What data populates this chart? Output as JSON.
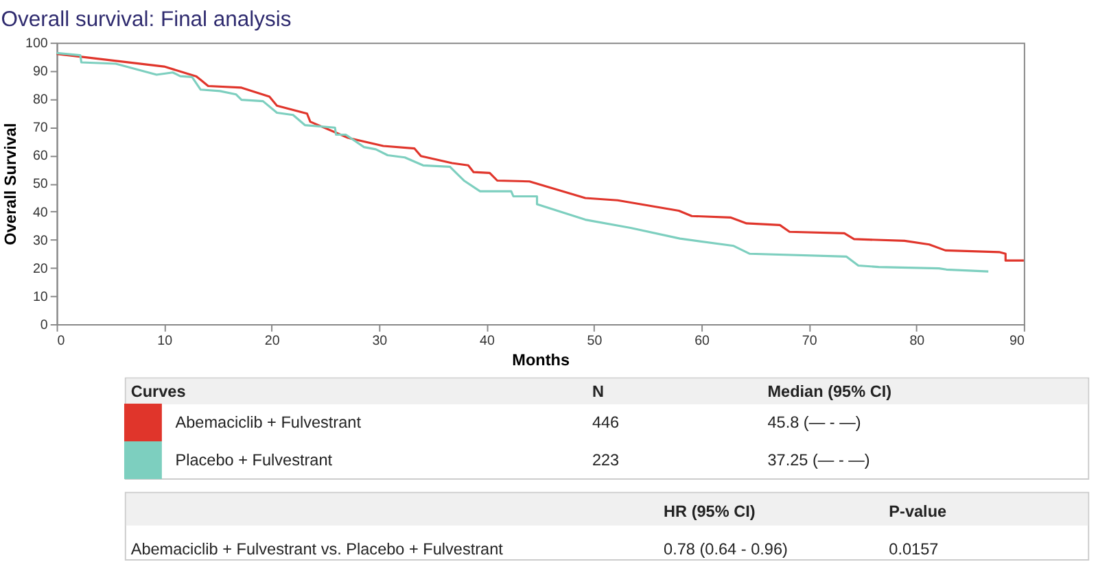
{
  "chart_data": {
    "type": "line",
    "title": "Overall survival: Final analysis",
    "xlabel": "Months",
    "ylabel": "Overall Survival",
    "xlim": [
      0,
      90
    ],
    "xticks": [
      0,
      10,
      20,
      30,
      40,
      50,
      60,
      70,
      80,
      90
    ],
    "ylim": [
      0,
      100
    ],
    "yticks": [
      0,
      10,
      20,
      30,
      40,
      50,
      60,
      70,
      80,
      90,
      100
    ],
    "grid": false,
    "legend": "bottom",
    "legend_title": "Curves",
    "line_style": "solid",
    "marker": "none",
    "series": [
      {
        "name": "Abemaciclib + Fulvestrant",
        "color": "#e0352b",
        "x": [
          0,
          10,
          13,
          13.4,
          14.1,
          17.2,
          19.8,
          20.5,
          23.3,
          23.6,
          27.1,
          30.4,
          33.3,
          33.9,
          36.8,
          38.3,
          38.8,
          40.3,
          41,
          44,
          49.2,
          52.2,
          57.9,
          59.1,
          62.7,
          64.2,
          67.3,
          68.2,
          73.3,
          74.2,
          78.9,
          81.2,
          82.7,
          87.7,
          88.3,
          88.3,
          90
        ],
        "values": [
          96,
          91.5,
          88,
          86.8,
          84.6,
          84,
          80.8,
          77.6,
          74.8,
          71.9,
          66.2,
          63.3,
          62.4,
          59.7,
          57.2,
          56.4,
          54,
          53.7,
          51,
          50.7,
          44.8,
          44,
          40.3,
          38.4,
          37.9,
          35.8,
          35.2,
          32.8,
          32.3,
          30.2,
          29.6,
          28.3,
          26.2,
          25.6,
          25,
          22.6,
          22.6
        ]
      },
      {
        "name": "Placebo + Fulvestrant",
        "color": "#7dcfbf",
        "x": [
          0,
          2.2,
          2.3,
          5.5,
          9.3,
          10.8,
          11.5,
          12.6,
          13.4,
          15.2,
          16.7,
          17.2,
          19.2,
          20.5,
          22,
          23.1,
          25.9,
          26,
          26.9,
          28.6,
          29.7,
          30.8,
          32.4,
          34.1,
          36.6,
          37.9,
          39.4,
          42.3,
          42.5,
          44.7,
          44.7,
          49.2,
          53.4,
          58,
          63,
          64.5,
          73.5,
          74.6,
          76.5,
          82.1,
          82.8,
          86.7
        ],
        "values": [
          96.3,
          95.5,
          93,
          92.5,
          88.6,
          89.4,
          88.1,
          87.8,
          83.3,
          82.8,
          81.6,
          79.7,
          79.2,
          75.1,
          74.3,
          70.7,
          69.8,
          67.3,
          67.3,
          62.9,
          62.1,
          60,
          59.2,
          56.4,
          55.9,
          51,
          47.2,
          47.2,
          45.4,
          45.4,
          42.6,
          37.1,
          34.2,
          30.4,
          27.8,
          25,
          24,
          20.8,
          20.3,
          19.8,
          19.4,
          18.7
        ]
      }
    ],
    "annotations": [
      "N",
      "Median (95% CI)",
      "446",
      "45.8 (— - —)",
      "223",
      "37.25 (— - —)",
      "HR (95% CI)",
      "P-value",
      "Abemaciclib + Fulvestrant vs. Placebo + Fulvestrant",
      "0.78 (0.64 - 0.96)",
      "0.0157"
    ]
  }
}
